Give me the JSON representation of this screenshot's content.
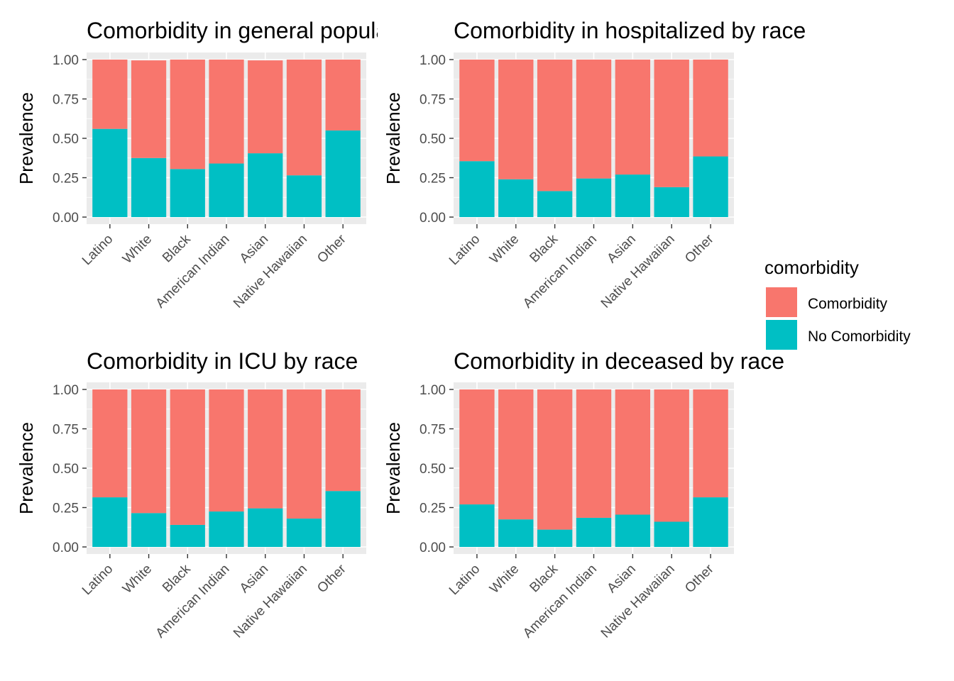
{
  "chart_data": [
    {
      "type": "bar",
      "stacked": true,
      "title": "Comorbidity in general population by race",
      "ylabel": "Prevalence",
      "xlabel": "",
      "ylim": [
        0,
        1
      ],
      "yticks": [
        "0.00",
        "0.25",
        "0.50",
        "0.75",
        "1.00"
      ],
      "categories": [
        "Latino",
        "White",
        "Black",
        "American Indian",
        "Asian",
        "Native Hawaiian",
        "Other"
      ],
      "series": [
        {
          "name": "No Comorbidity",
          "values": [
            0.56,
            0.375,
            0.305,
            0.34,
            0.405,
            0.265,
            0.55
          ]
        },
        {
          "name": "Comorbidity",
          "values": [
            0.44,
            0.62,
            0.695,
            0.66,
            0.59,
            0.735,
            0.45
          ]
        }
      ]
    },
    {
      "type": "bar",
      "stacked": true,
      "title": "Comorbidity in hospitalized by race",
      "ylabel": "Prevalence",
      "xlabel": "",
      "ylim": [
        0,
        1
      ],
      "yticks": [
        "0.00",
        "0.25",
        "0.50",
        "0.75",
        "1.00"
      ],
      "categories": [
        "Latino",
        "White",
        "Black",
        "American Indian",
        "Asian",
        "Native Hawaiian",
        "Other"
      ],
      "series": [
        {
          "name": "No Comorbidity",
          "values": [
            0.355,
            0.24,
            0.165,
            0.245,
            0.27,
            0.19,
            0.385
          ]
        },
        {
          "name": "Comorbidity",
          "values": [
            0.645,
            0.76,
            0.835,
            0.755,
            0.73,
            0.81,
            0.615
          ]
        }
      ]
    },
    {
      "type": "bar",
      "stacked": true,
      "title": "Comorbidity in ICU by race",
      "ylabel": "Prevalence",
      "xlabel": "",
      "ylim": [
        0,
        1
      ],
      "yticks": [
        "0.00",
        "0.25",
        "0.50",
        "0.75",
        "1.00"
      ],
      "categories": [
        "Latino",
        "White",
        "Black",
        "American Indian",
        "Asian",
        "Native Hawaiian",
        "Other"
      ],
      "series": [
        {
          "name": "No Comorbidity",
          "values": [
            0.315,
            0.215,
            0.14,
            0.225,
            0.245,
            0.18,
            0.355
          ]
        },
        {
          "name": "Comorbidity",
          "values": [
            0.685,
            0.785,
            0.86,
            0.775,
            0.755,
            0.82,
            0.645
          ]
        }
      ]
    },
    {
      "type": "bar",
      "stacked": true,
      "title": "Comorbidity in deceased by race",
      "ylabel": "Prevalence",
      "xlabel": "",
      "ylim": [
        0,
        1
      ],
      "yticks": [
        "0.00",
        "0.25",
        "0.50",
        "0.75",
        "1.00"
      ],
      "categories": [
        "Latino",
        "White",
        "Black",
        "American Indian",
        "Asian",
        "Native Hawaiian",
        "Other"
      ],
      "series": [
        {
          "name": "No Comorbidity",
          "values": [
            0.27,
            0.175,
            0.11,
            0.185,
            0.205,
            0.16,
            0.315
          ]
        },
        {
          "name": "Comorbidity",
          "values": [
            0.73,
            0.825,
            0.89,
            0.815,
            0.795,
            0.84,
            0.685
          ]
        }
      ]
    }
  ],
  "legend": {
    "title": "comorbidity",
    "items": [
      {
        "label": "Comorbidity",
        "color": "#F8766D"
      },
      {
        "label": "No Comorbidity",
        "color": "#00BFC4"
      }
    ]
  },
  "colors": {
    "panel_background": "#EBEBEB",
    "grid_major": "#FFFFFF",
    "comorbidity": "#F8766D",
    "no_comorbidity": "#00BFC4"
  }
}
